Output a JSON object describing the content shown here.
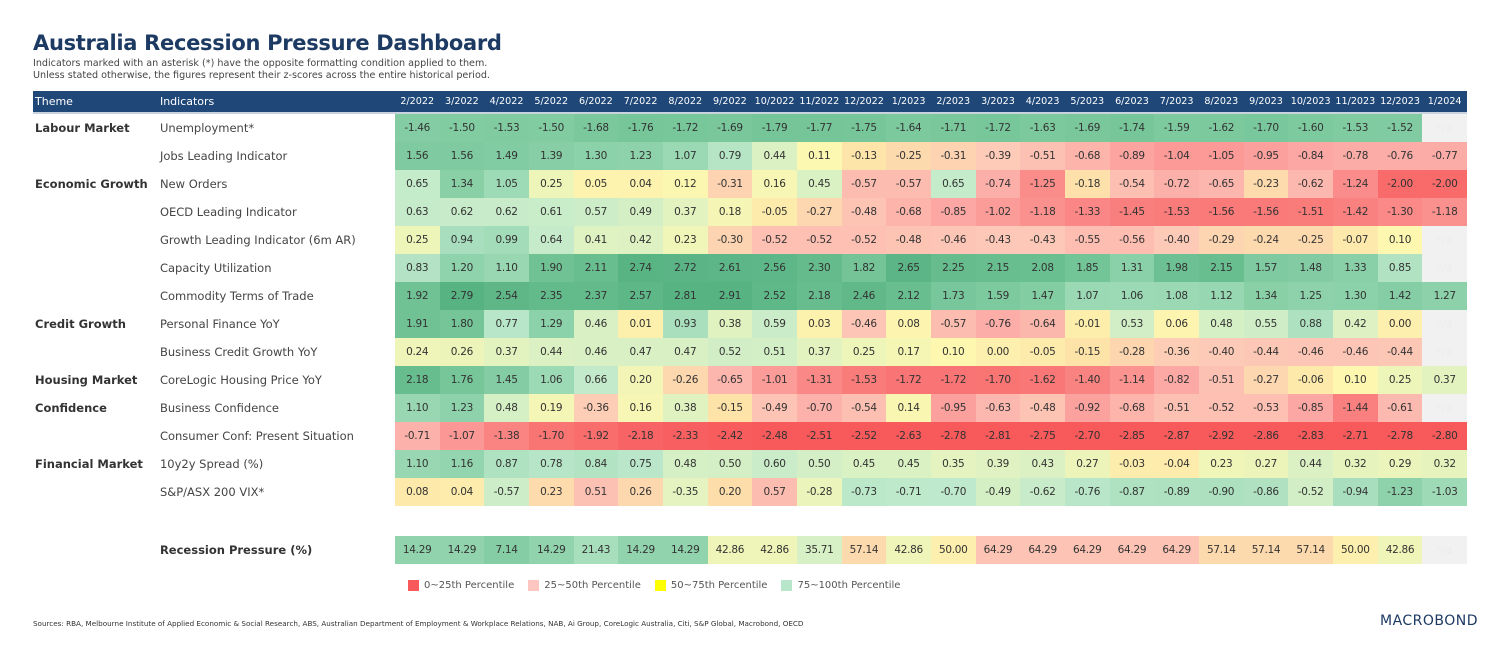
{
  "title": "Australia Recession Pressure Dashboard",
  "subtitle_lines": [
    "Indicators marked with an asterisk (*) have the opposite formatting condition applied to them.",
    "Unless stated otherwise, the figures represent their z-scores across the entire historical period."
  ],
  "chart_data": {
    "type": "heatmap",
    "header": {
      "theme": "Theme",
      "indicators": "Indicators"
    },
    "columns": [
      "2/2022",
      "3/2022",
      "4/2022",
      "5/2022",
      "6/2022",
      "7/2022",
      "8/2022",
      "9/2022",
      "10/2022",
      "11/2022",
      "12/2022",
      "1/2023",
      "2/2023",
      "3/2023",
      "4/2023",
      "5/2023",
      "6/2023",
      "7/2023",
      "8/2023",
      "9/2023",
      "10/2023",
      "11/2023",
      "12/2023",
      "1/2024"
    ],
    "missing_label": "n/a",
    "rows": [
      {
        "theme": "Labour Market",
        "indicator": "Unemployment*",
        "inverted": true,
        "values": [
          -1.46,
          -1.5,
          -1.53,
          -1.5,
          -1.68,
          -1.76,
          -1.72,
          -1.69,
          -1.79,
          -1.77,
          -1.75,
          -1.64,
          -1.71,
          -1.72,
          -1.63,
          -1.69,
          -1.74,
          -1.59,
          -1.62,
          -1.7,
          -1.6,
          -1.53,
          -1.52,
          null
        ]
      },
      {
        "theme": "",
        "indicator": "Jobs Leading Indicator",
        "values": [
          1.56,
          1.56,
          1.49,
          1.39,
          1.3,
          1.23,
          1.07,
          0.79,
          0.44,
          0.11,
          -0.13,
          -0.25,
          -0.31,
          -0.39,
          -0.51,
          -0.68,
          -0.89,
          -1.04,
          -1.05,
          -0.95,
          -0.84,
          -0.78,
          -0.76,
          -0.77
        ]
      },
      {
        "theme": "Economic Growth",
        "indicator": "New Orders",
        "values": [
          0.65,
          1.34,
          1.05,
          0.25,
          0.05,
          0.04,
          0.12,
          -0.31,
          0.16,
          0.45,
          -0.57,
          -0.57,
          0.65,
          -0.74,
          -1.25,
          -0.18,
          -0.54,
          -0.72,
          -0.65,
          -0.23,
          -0.62,
          -1.24,
          -2.0,
          -2.0
        ]
      },
      {
        "theme": "",
        "indicator": "OECD Leading Indicator",
        "values": [
          0.63,
          0.62,
          0.62,
          0.61,
          0.57,
          0.49,
          0.37,
          0.18,
          -0.05,
          -0.27,
          -0.48,
          -0.68,
          -0.85,
          -1.02,
          -1.18,
          -1.33,
          -1.45,
          -1.53,
          -1.56,
          -1.56,
          -1.51,
          -1.42,
          -1.3,
          -1.18
        ]
      },
      {
        "theme": "",
        "indicator": "Growth Leading Indicator (6m AR)",
        "values": [
          0.25,
          0.94,
          0.99,
          0.64,
          0.41,
          0.42,
          0.23,
          -0.3,
          -0.52,
          -0.52,
          -0.52,
          -0.48,
          -0.46,
          -0.43,
          -0.43,
          -0.55,
          -0.56,
          -0.4,
          -0.29,
          -0.24,
          -0.25,
          -0.07,
          0.1,
          null
        ]
      },
      {
        "theme": "",
        "indicator": "Capacity Utilization",
        "values": [
          0.83,
          1.2,
          1.1,
          1.9,
          2.11,
          2.74,
          2.72,
          2.61,
          2.56,
          2.3,
          1.82,
          2.65,
          2.25,
          2.15,
          2.08,
          1.85,
          1.31,
          1.98,
          2.15,
          1.57,
          1.48,
          1.33,
          0.85,
          null
        ]
      },
      {
        "theme": "",
        "indicator": "Commodity Terms of Trade",
        "values": [
          1.92,
          2.79,
          2.54,
          2.35,
          2.37,
          2.57,
          2.81,
          2.91,
          2.52,
          2.18,
          2.46,
          2.12,
          1.73,
          1.59,
          1.47,
          1.07,
          1.06,
          1.08,
          1.12,
          1.34,
          1.25,
          1.3,
          1.42,
          1.27
        ]
      },
      {
        "theme": "Credit Growth",
        "indicator": "Personal Finance YoY",
        "values": [
          1.91,
          1.8,
          0.77,
          1.29,
          0.46,
          0.01,
          0.93,
          0.38,
          0.59,
          0.03,
          -0.46,
          0.08,
          -0.57,
          -0.76,
          -0.64,
          -0.01,
          0.53,
          0.06,
          0.48,
          0.55,
          0.88,
          0.42,
          0.0,
          null
        ]
      },
      {
        "theme": "",
        "indicator": "Business Credit Growth YoY",
        "values": [
          0.24,
          0.26,
          0.37,
          0.44,
          0.46,
          0.47,
          0.47,
          0.52,
          0.51,
          0.37,
          0.25,
          0.17,
          0.1,
          0.0,
          -0.05,
          -0.15,
          -0.28,
          -0.36,
          -0.4,
          -0.44,
          -0.46,
          -0.46,
          -0.44,
          null
        ]
      },
      {
        "theme": "Housing Market",
        "indicator": "CoreLogic Housing Price YoY",
        "values": [
          2.18,
          1.76,
          1.45,
          1.06,
          0.66,
          0.2,
          -0.26,
          -0.65,
          -1.01,
          -1.31,
          -1.53,
          -1.72,
          -1.72,
          -1.7,
          -1.62,
          -1.4,
          -1.14,
          -0.82,
          -0.51,
          -0.27,
          -0.06,
          0.1,
          0.25,
          0.37
        ]
      },
      {
        "theme": "Confidence",
        "indicator": "Business Confidence",
        "values": [
          1.1,
          1.23,
          0.48,
          0.19,
          -0.36,
          0.16,
          0.38,
          -0.15,
          -0.49,
          -0.7,
          -0.54,
          0.14,
          -0.95,
          -0.63,
          -0.48,
          -0.92,
          -0.68,
          -0.51,
          -0.52,
          -0.53,
          -0.85,
          -1.44,
          -0.61,
          null
        ]
      },
      {
        "theme": "",
        "indicator": "Consumer Conf: Present Situation",
        "values": [
          -0.71,
          -1.07,
          -1.38,
          -1.7,
          -1.92,
          -2.18,
          -2.33,
          -2.42,
          -2.48,
          -2.51,
          -2.52,
          -2.63,
          -2.78,
          -2.81,
          -2.75,
          -2.7,
          -2.85,
          -2.87,
          -2.92,
          -2.86,
          -2.83,
          -2.71,
          -2.78,
          -2.8
        ]
      },
      {
        "theme": "Financial Market",
        "indicator": "10y2y Spread (%)",
        "values": [
          1.1,
          1.16,
          0.87,
          0.78,
          0.84,
          0.75,
          0.48,
          0.5,
          0.6,
          0.5,
          0.45,
          0.45,
          0.35,
          0.39,
          0.43,
          0.27,
          -0.03,
          -0.04,
          0.23,
          0.27,
          0.44,
          0.32,
          0.29,
          0.32
        ]
      },
      {
        "theme": "",
        "indicator": "S&P/ASX 200 VIX*",
        "inverted": true,
        "values": [
          0.08,
          0.04,
          -0.57,
          0.23,
          0.51,
          0.26,
          -0.35,
          0.2,
          0.57,
          -0.28,
          -0.73,
          -0.71,
          -0.7,
          -0.49,
          -0.62,
          -0.76,
          -0.87,
          -0.89,
          -0.9,
          -0.86,
          -0.52,
          -0.94,
          -1.23,
          -1.03
        ]
      }
    ],
    "recession_pressure": {
      "label": "Recession Pressure (%)",
      "values": [
        14.29,
        14.29,
        7.14,
        14.29,
        21.43,
        14.29,
        14.29,
        42.86,
        42.86,
        35.71,
        57.14,
        42.86,
        50.0,
        64.29,
        64.29,
        64.29,
        64.29,
        64.29,
        57.14,
        57.14,
        57.14,
        50.0,
        42.86,
        null
      ]
    },
    "legend": [
      {
        "label": "0~25th Percentile",
        "color": "#f8595a"
      },
      {
        "label": "25~50th Percentile",
        "color": "#fdc6c0"
      },
      {
        "label": "50~75th Percentile",
        "color": "#ffff00"
      },
      {
        "label": "75~100th Percentile",
        "color": "#b7e6cb"
      }
    ]
  },
  "colors": {
    "header_bg": "#1f4778",
    "title": "#1d3a63"
  },
  "sources": "Sources: RBA, Melbourne Institute of Applied Economic & Social Research, ABS, Australian Department of Employment & Workplace Relations, NAB, Ai Group, CoreLogic Australia, Citi, S&P Global, Macrobond, OECD",
  "logo": "MACROBOND"
}
